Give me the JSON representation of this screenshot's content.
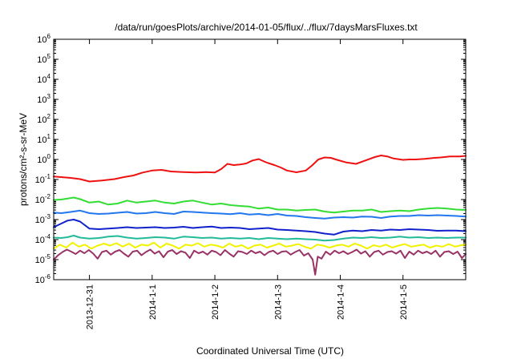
{
  "chart_data": {
    "type": "line",
    "title": "/data/run/goesPlots/archive/2014-01-05/flux/../flux/7daysMarsFluxes.txt",
    "xlabel": "Coordinated Universal Time (UTC)",
    "ylabel": "protons/cm²-s-sr-MeV",
    "yscale": "log",
    "ylim_exp": [
      -6,
      6
    ],
    "y_ticks": [
      {
        "base": "10",
        "exp": "-6"
      },
      {
        "base": "10",
        "exp": "-5"
      },
      {
        "base": "10",
        "exp": "-4"
      },
      {
        "base": "10",
        "exp": "-3"
      },
      {
        "base": "10",
        "exp": "-2"
      },
      {
        "base": "10",
        "exp": "-1"
      },
      {
        "base": "10",
        "exp": "0"
      },
      {
        "base": "10",
        "exp": "1"
      },
      {
        "base": "10",
        "exp": "2"
      },
      {
        "base": "10",
        "exp": "3"
      },
      {
        "base": "10",
        "exp": "4"
      },
      {
        "base": "10",
        "exp": "5"
      },
      {
        "base": "10",
        "exp": "6"
      }
    ],
    "xlim_days": [
      -1.57,
      5.0
    ],
    "x_ticks": [
      {
        "label": "2013-12-31",
        "day": -1
      },
      {
        "label": "2014-1-1",
        "day": 0
      },
      {
        "label": "2014-1-2",
        "day": 1
      },
      {
        "label": "2014-1-3",
        "day": 2
      },
      {
        "label": "2014-1-4",
        "day": 3
      },
      {
        "label": "2014-1-5",
        "day": 4
      }
    ],
    "grid": false,
    "series": [
      {
        "color": "#ee1111",
        "x": [
          -1.57,
          -1.3,
          -1.15,
          -1.0,
          -0.8,
          -0.6,
          -0.45,
          -0.3,
          -0.15,
          0.0,
          0.15,
          0.3,
          0.5,
          0.7,
          0.85,
          1.0,
          1.1,
          1.2,
          1.3,
          1.4,
          1.5,
          1.6,
          1.7,
          1.8,
          1.85,
          1.95,
          2.05,
          2.15,
          2.3,
          2.45,
          2.55,
          2.65,
          2.75,
          2.85,
          2.95,
          3.1,
          3.25,
          3.4,
          3.55,
          3.65,
          3.75,
          3.85,
          4.0,
          4.1,
          4.2,
          4.35,
          4.5,
          4.6,
          4.75,
          4.9,
          5.0
        ],
        "y_exp": [
          -0.85,
          -0.92,
          -0.98,
          -1.1,
          -1.05,
          -0.98,
          -0.88,
          -0.8,
          -0.65,
          -0.55,
          -0.52,
          -0.6,
          -0.63,
          -0.65,
          -0.63,
          -0.65,
          -0.48,
          -0.22,
          -0.28,
          -0.25,
          -0.2,
          -0.05,
          0.02,
          -0.12,
          -0.18,
          -0.28,
          -0.4,
          -0.55,
          -0.64,
          -0.55,
          -0.3,
          0.0,
          0.1,
          0.08,
          -0.02,
          -0.15,
          -0.22,
          -0.05,
          0.12,
          0.2,
          0.15,
          0.05,
          -0.02,
          0.0,
          0.0,
          0.03,
          0.08,
          0.1,
          0.15,
          0.15,
          0.18
        ]
      },
      {
        "color": "#33dd33",
        "x": [
          -1.57,
          -1.45,
          -1.35,
          -1.25,
          -1.15,
          -1.0,
          -0.85,
          -0.7,
          -0.55,
          -0.4,
          -0.25,
          -0.1,
          0.05,
          0.2,
          0.35,
          0.5,
          0.65,
          0.8,
          0.95,
          1.1,
          1.25,
          1.4,
          1.55,
          1.7,
          1.85,
          2.0,
          2.15,
          2.3,
          2.45,
          2.6,
          2.75,
          2.9,
          3.05,
          3.2,
          3.35,
          3.5,
          3.65,
          3.8,
          3.95,
          4.1,
          4.25,
          4.4,
          4.55,
          4.7,
          4.85,
          5.0
        ],
        "y_exp": [
          -2.02,
          -2.0,
          -1.95,
          -1.9,
          -1.98,
          -2.15,
          -2.1,
          -2.25,
          -2.2,
          -2.05,
          -2.15,
          -2.1,
          -2.05,
          -2.15,
          -2.2,
          -2.1,
          -2.05,
          -2.15,
          -2.25,
          -2.2,
          -2.28,
          -2.32,
          -2.35,
          -2.45,
          -2.4,
          -2.5,
          -2.5,
          -2.55,
          -2.52,
          -2.5,
          -2.6,
          -2.65,
          -2.6,
          -2.55,
          -2.55,
          -2.5,
          -2.62,
          -2.58,
          -2.55,
          -2.58,
          -2.5,
          -2.45,
          -2.42,
          -2.45,
          -2.5,
          -2.52
        ]
      },
      {
        "color": "#2277ee",
        "x": [
          -1.57,
          -1.45,
          -1.3,
          -1.15,
          -1.0,
          -0.85,
          -0.7,
          -0.55,
          -0.4,
          -0.25,
          -0.1,
          0.05,
          0.2,
          0.35,
          0.5,
          0.65,
          0.8,
          0.95,
          1.1,
          1.25,
          1.4,
          1.55,
          1.7,
          1.85,
          2.0,
          2.15,
          2.3,
          2.45,
          2.6,
          2.75,
          2.9,
          3.05,
          3.2,
          3.35,
          3.5,
          3.65,
          3.8,
          3.95,
          4.1,
          4.25,
          4.4,
          4.55,
          4.7,
          4.85,
          5.0
        ],
        "y_exp": [
          -2.65,
          -2.68,
          -2.62,
          -2.55,
          -2.68,
          -2.72,
          -2.7,
          -2.66,
          -2.62,
          -2.7,
          -2.68,
          -2.62,
          -2.68,
          -2.72,
          -2.6,
          -2.62,
          -2.65,
          -2.68,
          -2.7,
          -2.73,
          -2.68,
          -2.75,
          -2.72,
          -2.78,
          -2.72,
          -2.8,
          -2.82,
          -2.88,
          -2.92,
          -2.95,
          -2.9,
          -2.88,
          -2.9,
          -2.85,
          -2.86,
          -2.92,
          -2.85,
          -2.82,
          -2.82,
          -2.78,
          -2.8,
          -2.78,
          -2.8,
          -2.82,
          -2.85
        ]
      },
      {
        "color": "#1122cc",
        "x": [
          -1.57,
          -1.45,
          -1.35,
          -1.25,
          -1.15,
          -1.0,
          -0.85,
          -0.7,
          -0.55,
          -0.4,
          -0.25,
          -0.1,
          0.05,
          0.2,
          0.35,
          0.5,
          0.65,
          0.8,
          0.95,
          1.1,
          1.25,
          1.4,
          1.55,
          1.7,
          1.85,
          2.0,
          2.15,
          2.3,
          2.45,
          2.6,
          2.75,
          2.9,
          3.05,
          3.2,
          3.35,
          3.5,
          3.65,
          3.8,
          3.95,
          4.1,
          4.25,
          4.4,
          4.55,
          4.7,
          4.85,
          5.0
        ],
        "y_exp": [
          -3.38,
          -3.2,
          -3.05,
          -3.0,
          -3.1,
          -3.45,
          -3.48,
          -3.45,
          -3.42,
          -3.38,
          -3.42,
          -3.4,
          -3.38,
          -3.42,
          -3.4,
          -3.36,
          -3.42,
          -3.38,
          -3.35,
          -3.42,
          -3.4,
          -3.42,
          -3.48,
          -3.45,
          -3.42,
          -3.5,
          -3.52,
          -3.55,
          -3.58,
          -3.62,
          -3.7,
          -3.75,
          -3.6,
          -3.55,
          -3.58,
          -3.52,
          -3.55,
          -3.5,
          -3.52,
          -3.48,
          -3.5,
          -3.52,
          -3.56,
          -3.55,
          -3.55,
          -3.58
        ]
      },
      {
        "color": "#22bb99",
        "x": [
          -1.57,
          -1.45,
          -1.35,
          -1.25,
          -1.15,
          -1.0,
          -0.85,
          -0.7,
          -0.55,
          -0.4,
          -0.25,
          -0.1,
          0.05,
          0.2,
          0.35,
          0.5,
          0.65,
          0.8,
          0.95,
          1.1,
          1.25,
          1.4,
          1.55,
          1.7,
          1.85,
          2.0,
          2.15,
          2.3,
          2.45,
          2.6,
          2.75,
          2.9,
          3.05,
          3.2,
          3.35,
          3.5,
          3.65,
          3.8,
          3.95,
          4.1,
          4.25,
          4.4,
          4.55,
          4.7,
          4.85,
          5.0
        ],
        "y_exp": [
          -3.9,
          -3.92,
          -3.88,
          -3.8,
          -3.9,
          -3.95,
          -3.92,
          -3.85,
          -3.82,
          -3.9,
          -3.95,
          -3.92,
          -3.88,
          -3.9,
          -3.95,
          -3.85,
          -3.88,
          -3.92,
          -3.9,
          -3.95,
          -3.92,
          -3.95,
          -3.92,
          -3.98,
          -3.92,
          -3.95,
          -3.98,
          -3.95,
          -3.98,
          -4.0,
          -4.05,
          -4.02,
          -3.95,
          -3.9,
          -3.92,
          -3.88,
          -3.92,
          -3.9,
          -3.85,
          -3.9,
          -3.88,
          -3.92,
          -3.9,
          -3.92,
          -3.9,
          -3.9
        ]
      },
      {
        "color": "#f2f200",
        "x": [
          -1.57,
          -1.47,
          -1.37,
          -1.27,
          -1.17,
          -1.07,
          -0.97,
          -0.87,
          -0.77,
          -0.67,
          -0.57,
          -0.47,
          -0.37,
          -0.27,
          -0.17,
          -0.07,
          0.03,
          0.13,
          0.23,
          0.33,
          0.43,
          0.53,
          0.63,
          0.73,
          0.83,
          0.93,
          1.03,
          1.13,
          1.23,
          1.33,
          1.43,
          1.53,
          1.63,
          1.73,
          1.83,
          1.93,
          2.03,
          2.13,
          2.23,
          2.33,
          2.43,
          2.53,
          2.63,
          2.73,
          2.83,
          2.93,
          3.03,
          3.13,
          3.23,
          3.33,
          3.43,
          3.53,
          3.63,
          3.73,
          3.83,
          3.93,
          4.03,
          4.13,
          4.23,
          4.33,
          4.43,
          4.53,
          4.63,
          4.73,
          4.83,
          4.93,
          5.0
        ],
        "y_exp": [
          -4.45,
          -4.25,
          -4.4,
          -4.15,
          -4.35,
          -4.25,
          -4.45,
          -4.3,
          -4.2,
          -4.3,
          -4.18,
          -4.35,
          -4.2,
          -4.4,
          -4.25,
          -4.3,
          -4.15,
          -4.4,
          -4.2,
          -4.3,
          -4.45,
          -4.25,
          -4.3,
          -4.18,
          -4.35,
          -4.25,
          -4.3,
          -4.4,
          -4.2,
          -4.35,
          -4.28,
          -4.45,
          -4.3,
          -4.25,
          -4.4,
          -4.3,
          -4.2,
          -4.35,
          -4.3,
          -4.22,
          -4.35,
          -4.45,
          -4.25,
          -4.3,
          -4.4,
          -4.3,
          -4.25,
          -4.35,
          -4.2,
          -4.3,
          -4.45,
          -4.28,
          -4.35,
          -4.25,
          -4.4,
          -4.3,
          -4.22,
          -4.35,
          -4.3,
          -4.25,
          -4.4,
          -4.3,
          -4.35,
          -4.22,
          -4.35,
          -4.28,
          -4.25
        ]
      },
      {
        "color": "#993366",
        "x": [
          -1.57,
          -1.5,
          -1.43,
          -1.36,
          -1.29,
          -1.22,
          -1.15,
          -1.08,
          -1.01,
          -0.94,
          -0.87,
          -0.8,
          -0.73,
          -0.66,
          -0.59,
          -0.52,
          -0.45,
          -0.38,
          -0.31,
          -0.24,
          -0.17,
          -0.1,
          -0.03,
          0.04,
          0.11,
          0.18,
          0.25,
          0.32,
          0.39,
          0.46,
          0.53,
          0.6,
          0.67,
          0.74,
          0.81,
          0.88,
          0.95,
          1.02,
          1.09,
          1.16,
          1.23,
          1.3,
          1.37,
          1.44,
          1.51,
          1.58,
          1.65,
          1.72,
          1.79,
          1.86,
          1.93,
          2.0,
          2.07,
          2.14,
          2.21,
          2.28,
          2.35,
          2.42,
          2.49,
          2.56,
          2.6,
          2.64,
          2.7,
          2.77,
          2.84,
          2.91,
          2.98,
          3.05,
          3.12,
          3.19,
          3.26,
          3.33,
          3.4,
          3.47,
          3.54,
          3.61,
          3.68,
          3.75,
          3.82,
          3.89,
          3.96,
          4.03,
          4.1,
          4.17,
          4.24,
          4.31,
          4.38,
          4.45,
          4.52,
          4.59,
          4.66,
          4.73,
          4.8,
          4.87,
          4.94,
          5.0
        ],
        "y_exp": [
          -5.0,
          -4.78,
          -4.62,
          -4.5,
          -4.6,
          -4.72,
          -4.55,
          -4.68,
          -4.52,
          -4.7,
          -4.95,
          -4.62,
          -4.55,
          -4.75,
          -4.6,
          -4.52,
          -4.7,
          -4.85,
          -4.6,
          -4.55,
          -4.78,
          -4.62,
          -4.5,
          -4.7,
          -4.58,
          -4.88,
          -4.6,
          -4.52,
          -4.72,
          -4.58,
          -4.65,
          -4.92,
          -4.55,
          -4.68,
          -4.6,
          -4.75,
          -4.55,
          -4.62,
          -4.78,
          -4.52,
          -4.7,
          -4.85,
          -4.58,
          -4.62,
          -4.72,
          -4.55,
          -4.68,
          -4.6,
          -4.78,
          -4.62,
          -4.55,
          -4.72,
          -4.6,
          -4.58,
          -4.75,
          -4.62,
          -4.52,
          -4.8,
          -4.68,
          -5.0,
          -5.75,
          -4.85,
          -4.95,
          -4.6,
          -4.75,
          -4.55,
          -4.68,
          -4.58,
          -4.72,
          -4.62,
          -4.5,
          -4.7,
          -4.58,
          -4.85,
          -4.62,
          -4.55,
          -4.75,
          -4.62,
          -4.58,
          -4.7,
          -4.55,
          -4.92,
          -4.6,
          -4.75,
          -4.55,
          -4.68,
          -4.6,
          -4.72,
          -4.55,
          -4.85,
          -4.62,
          -4.58,
          -4.72,
          -4.6,
          -4.92,
          -4.72
        ]
      }
    ]
  }
}
